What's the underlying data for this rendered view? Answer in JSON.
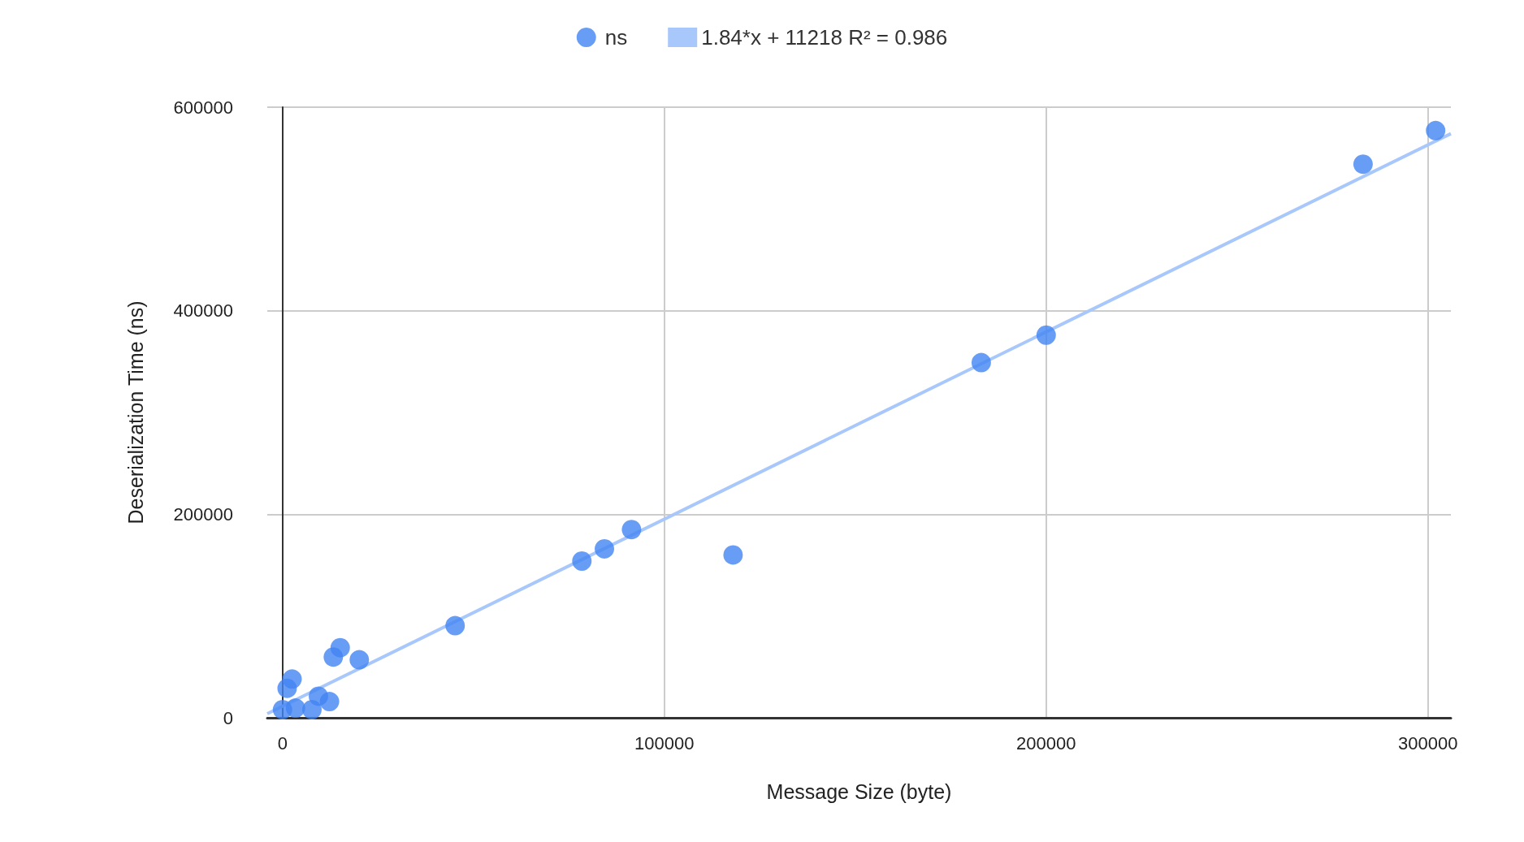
{
  "chart_data": {
    "type": "scatter",
    "xlabel": "Message Size (byte)",
    "ylabel": "Deserialization Time (ns)",
    "xlim": [
      -4000,
      306000
    ],
    "ylim": [
      0,
      600000
    ],
    "xticks": [
      0,
      100000,
      200000,
      300000
    ],
    "yticks": [
      0,
      200000,
      400000,
      600000
    ],
    "grid": true,
    "legend": "top",
    "marker": "circle",
    "series": [
      {
        "name": "ns",
        "color": "#4285f4",
        "x": [
          302000,
          283000,
          200000,
          183000,
          118000,
          91400,
          84300,
          78400,
          45200,
          20100,
          15100,
          13300,
          2500,
          1200,
          9400,
          12300,
          0,
          3400,
          7700
        ],
        "values": [
          577000,
          544000,
          376000,
          349000,
          160000,
          185000,
          166000,
          154000,
          90500,
          57000,
          68900,
          59700,
          38000,
          29000,
          21200,
          15900,
          8000,
          9500,
          8000
        ]
      },
      {
        "name": "1.84*x + 11218 R² = 0.986",
        "type": "line",
        "marker": "none",
        "color": "#a8c7fa",
        "x": [
          -4000,
          306000
        ],
        "values": [
          4000,
          574000
        ]
      }
    ]
  }
}
